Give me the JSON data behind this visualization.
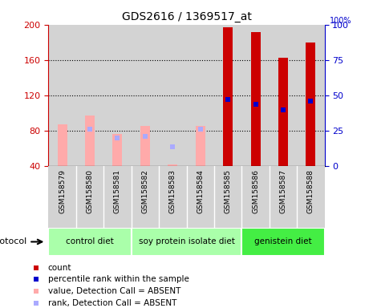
{
  "title": "GDS2616 / 1369517_at",
  "samples": [
    "GSM158579",
    "GSM158580",
    "GSM158581",
    "GSM158582",
    "GSM158583",
    "GSM158584",
    "GSM158585",
    "GSM158586",
    "GSM158587",
    "GSM158588"
  ],
  "count_values": [
    null,
    null,
    null,
    null,
    null,
    null,
    197,
    192,
    163,
    180
  ],
  "rank_values_pct": [
    null,
    null,
    null,
    null,
    null,
    null,
    47,
    44,
    40,
    46
  ],
  "absent_value_bars": [
    87,
    97,
    77,
    86,
    42,
    86,
    null,
    null,
    null,
    null
  ],
  "absent_rank_pct": [
    null,
    26,
    20,
    21,
    14,
    26,
    null,
    null,
    null,
    null
  ],
  "ylim_left": [
    40,
    200
  ],
  "ylim_right": [
    0,
    100
  ],
  "yticks_left": [
    40,
    80,
    120,
    160,
    200
  ],
  "yticks_right": [
    0,
    25,
    50,
    75,
    100
  ],
  "group_spans": [
    {
      "label": "control diet",
      "start": 0,
      "end": 2,
      "color": "#aaffaa"
    },
    {
      "label": "soy protein isolate diet",
      "start": 3,
      "end": 6,
      "color": "#aaffaa"
    },
    {
      "label": "genistein diet",
      "start": 7,
      "end": 9,
      "color": "#44ee44"
    }
  ],
  "colors": {
    "count_bar": "#cc0000",
    "rank_marker": "#0000cc",
    "absent_value_bar": "#ffaaaa",
    "absent_rank_marker": "#aaaaff",
    "left_axis": "#cc0000",
    "right_axis": "#0000cc",
    "bg_sample": "#d3d3d3",
    "plot_bg": "#ffffff"
  },
  "legend_items": [
    {
      "color": "#cc0000",
      "label": "count"
    },
    {
      "color": "#0000cc",
      "label": "percentile rank within the sample"
    },
    {
      "color": "#ffaaaa",
      "label": "value, Detection Call = ABSENT"
    },
    {
      "color": "#aaaaff",
      "label": "rank, Detection Call = ABSENT"
    }
  ]
}
